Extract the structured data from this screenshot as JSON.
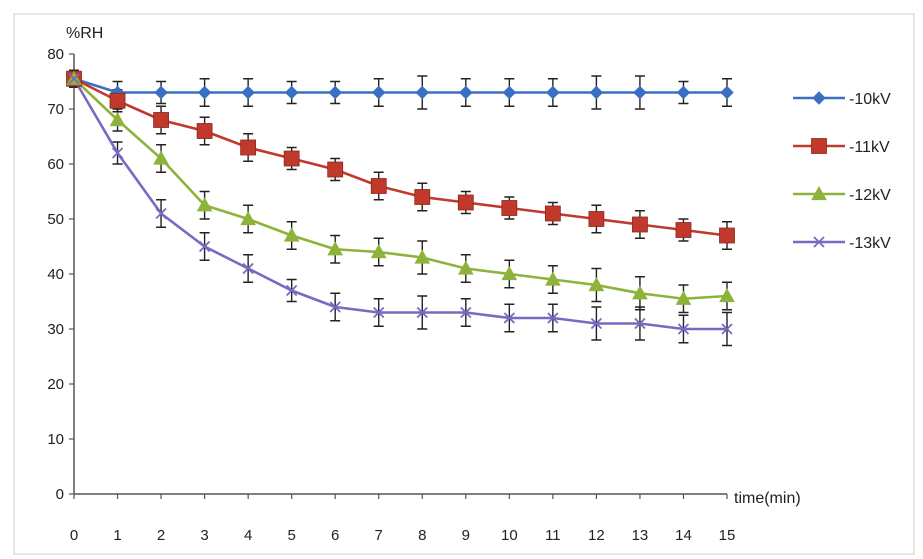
{
  "chart_data": {
    "type": "line",
    "xlabel": "time(min)",
    "ylabel": "%RH",
    "xlim": [
      0,
      15
    ],
    "ylim": [
      0,
      80
    ],
    "x_ticks": [
      "0",
      "1",
      "2",
      "3",
      "4",
      "5",
      "6",
      "7",
      "8",
      "9",
      "10",
      "11",
      "12",
      "13",
      "14",
      "15"
    ],
    "y_ticks": [
      "0",
      "10",
      "20",
      "30",
      "40",
      "50",
      "60",
      "70",
      "80"
    ],
    "grid": false,
    "legend_position": "right",
    "x": [
      0,
      1,
      2,
      3,
      4,
      5,
      6,
      7,
      8,
      9,
      10,
      11,
      12,
      13,
      14,
      15
    ],
    "series": [
      {
        "name": "-10kV",
        "color": "#3a6fc4",
        "marker": "diamond",
        "values": [
          75.5,
          73,
          73,
          73,
          73,
          73,
          73,
          73,
          73,
          73,
          73,
          73,
          73,
          73,
          73,
          73
        ],
        "error": [
          1.5,
          2,
          2,
          2.5,
          2.5,
          2,
          2,
          2.5,
          3,
          2.5,
          2.5,
          2.5,
          3,
          3,
          2,
          2.5
        ]
      },
      {
        "name": "-11kV",
        "color": "#c0392b",
        "marker": "square",
        "values": [
          75.5,
          71.5,
          68,
          66,
          63,
          61,
          59,
          56,
          54,
          53,
          52,
          51,
          50,
          49,
          48,
          47
        ],
        "error": [
          1.5,
          2,
          2.5,
          2.5,
          2.5,
          2,
          2,
          2.5,
          2.5,
          2,
          2,
          2,
          2.5,
          2.5,
          2,
          2.5
        ]
      },
      {
        "name": "-12kV",
        "color": "#8db33a",
        "marker": "triangle",
        "values": [
          75.5,
          68,
          61,
          52.5,
          50,
          47,
          44.5,
          44,
          43,
          41,
          40,
          39,
          38,
          36.5,
          35.5,
          36
        ],
        "error": [
          1.5,
          2,
          2.5,
          2.5,
          2.5,
          2.5,
          2.5,
          2.5,
          3,
          2.5,
          2.5,
          2.5,
          3,
          3,
          2.5,
          2.5
        ]
      },
      {
        "name": "-13kV",
        "color": "#7b68c0",
        "marker": "x",
        "values": [
          75.5,
          62,
          51,
          45,
          41,
          37,
          34,
          33,
          33,
          33,
          32,
          32,
          31,
          31,
          30,
          30
        ],
        "error": [
          1.5,
          2,
          2.5,
          2.5,
          2.5,
          2,
          2.5,
          2.5,
          3,
          2.5,
          2.5,
          2.5,
          3,
          3,
          2.5,
          3
        ]
      }
    ]
  }
}
